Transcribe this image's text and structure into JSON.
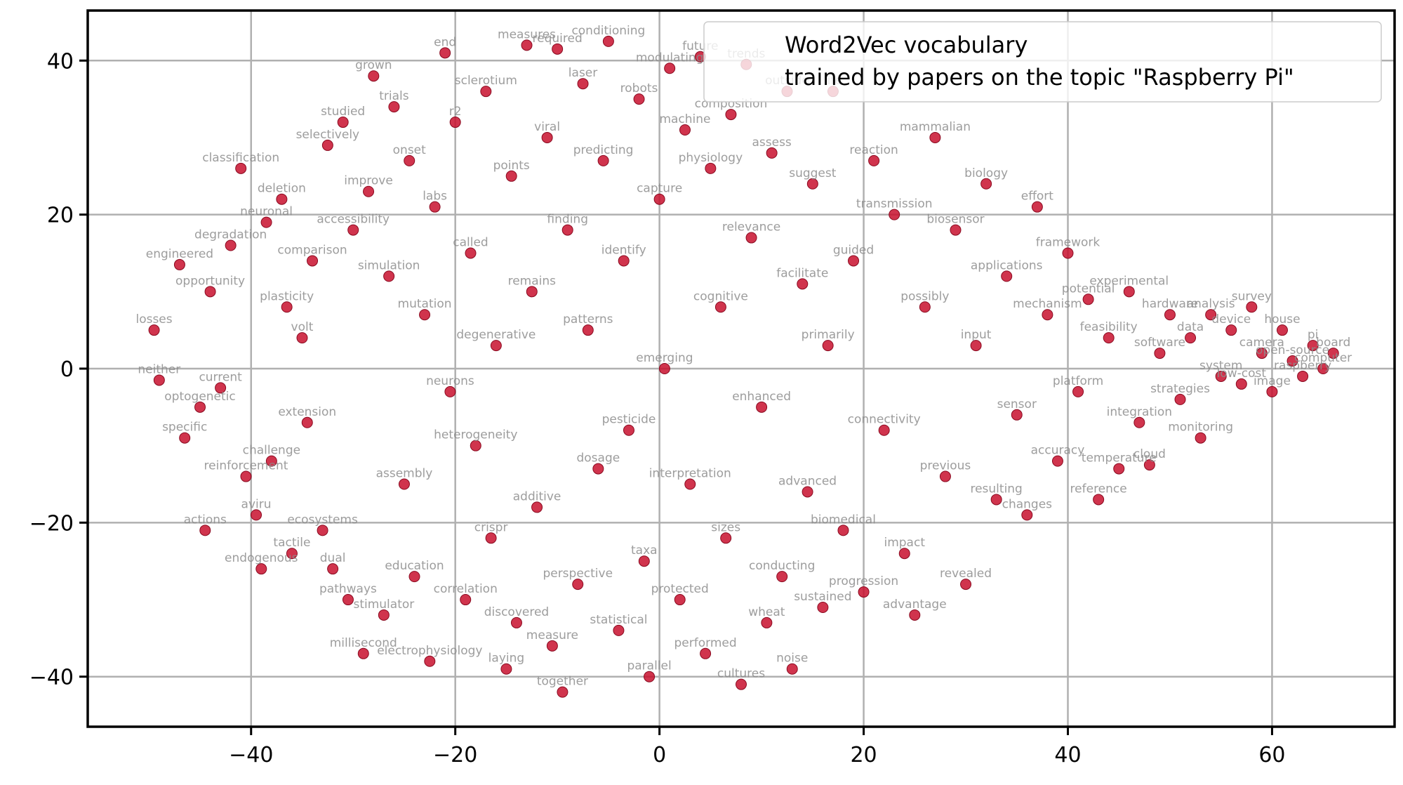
{
  "chart_data": {
    "type": "scatter",
    "title": "",
    "xlabel": "",
    "ylabel": "",
    "xlim": [
      -56,
      72
    ],
    "ylim": [
      -46.5,
      46.5
    ],
    "xticks": [
      -40,
      -20,
      0,
      20,
      40,
      60
    ],
    "yticks": [
      -40,
      -20,
      0,
      20,
      40
    ],
    "xtick_labels": [
      "−40",
      "−20",
      "0",
      "20",
      "40",
      "60"
    ],
    "ytick_labels": [
      "−40",
      "−20",
      "0",
      "20",
      "40"
    ],
    "grid": true,
    "legend": {
      "placement": "top-right",
      "lines": [
        "Word2Vec vocabulary",
        "trained by papers on the topic \"Raspberry Pi\""
      ]
    },
    "colors": {
      "marker": "#c8102e",
      "marker_edge": "#8a0a20",
      "label": "#8c8c8c",
      "grid": "#b0b0b0"
    },
    "series": [
      {
        "points": [
          {
            "x": -49.5,
            "y": 5,
            "label": "losses"
          },
          {
            "x": -49,
            "y": -1.5,
            "label": "neither"
          },
          {
            "x": -47,
            "y": 13.5,
            "label": "engineered"
          },
          {
            "x": -46.5,
            "y": -9,
            "label": "specific"
          },
          {
            "x": -45,
            "y": -5,
            "label": "optogenetic"
          },
          {
            "x": -44.5,
            "y": -21,
            "label": "actions"
          },
          {
            "x": -44,
            "y": 10,
            "label": "opportunity"
          },
          {
            "x": -43,
            "y": -2.5,
            "label": "current"
          },
          {
            "x": -42,
            "y": 16,
            "label": "degradation"
          },
          {
            "x": -41,
            "y": 26,
            "label": "classification"
          },
          {
            "x": -40.5,
            "y": -14,
            "label": "reinforcement"
          },
          {
            "x": -39.5,
            "y": -19,
            "label": "aviru"
          },
          {
            "x": -39,
            "y": -26,
            "label": "endogenous"
          },
          {
            "x": -38.5,
            "y": 19,
            "label": "neuronal"
          },
          {
            "x": -38,
            "y": -12,
            "label": "challenge"
          },
          {
            "x": -37,
            "y": 22,
            "label": "deletion"
          },
          {
            "x": -36.5,
            "y": 8,
            "label": "plasticity"
          },
          {
            "x": -36,
            "y": -24,
            "label": "tactile"
          },
          {
            "x": -35,
            "y": 4,
            "label": "volt"
          },
          {
            "x": -34.5,
            "y": -7,
            "label": "extension"
          },
          {
            "x": -34,
            "y": 14,
            "label": "comparison"
          },
          {
            "x": -33,
            "y": -21,
            "label": "ecosystems"
          },
          {
            "x": -32.5,
            "y": 29,
            "label": "selectively"
          },
          {
            "x": -32,
            "y": -26,
            "label": "dual"
          },
          {
            "x": -31,
            "y": 32,
            "label": "studied"
          },
          {
            "x": -30.5,
            "y": -30,
            "label": "pathways"
          },
          {
            "x": -30,
            "y": 18,
            "label": "accessibility"
          },
          {
            "x": -29,
            "y": -37,
            "label": "millisecond"
          },
          {
            "x": -28.5,
            "y": 23,
            "label": "improve"
          },
          {
            "x": -28,
            "y": 38,
            "label": "grown"
          },
          {
            "x": -27,
            "y": -32,
            "label": "stimulator"
          },
          {
            "x": -26.5,
            "y": 12,
            "label": "simulation"
          },
          {
            "x": -26,
            "y": 34,
            "label": "trials"
          },
          {
            "x": -25,
            "y": -15,
            "label": "assembly"
          },
          {
            "x": -24.5,
            "y": 27,
            "label": "onset"
          },
          {
            "x": -24,
            "y": -27,
            "label": "education"
          },
          {
            "x": -23,
            "y": 7,
            "label": "mutation"
          },
          {
            "x": -22.5,
            "y": -38,
            "label": "electrophysiology"
          },
          {
            "x": -22,
            "y": 21,
            "label": "labs"
          },
          {
            "x": -21,
            "y": 41,
            "label": "end"
          },
          {
            "x": -20.5,
            "y": -3,
            "label": "neurons"
          },
          {
            "x": -20,
            "y": 32,
            "label": "r2"
          },
          {
            "x": -19,
            "y": -30,
            "label": "correlation"
          },
          {
            "x": -18.5,
            "y": 15,
            "label": "called"
          },
          {
            "x": -18,
            "y": -10,
            "label": "heterogeneity"
          },
          {
            "x": -17,
            "y": 36,
            "label": "sclerotium"
          },
          {
            "x": -16.5,
            "y": -22,
            "label": "crispr"
          },
          {
            "x": -16,
            "y": 3,
            "label": "degenerative"
          },
          {
            "x": -15,
            "y": -39,
            "label": "laying"
          },
          {
            "x": -14.5,
            "y": 25,
            "label": "points"
          },
          {
            "x": -14,
            "y": -33,
            "label": "discovered"
          },
          {
            "x": -13,
            "y": 42,
            "label": "measures"
          },
          {
            "x": -12.5,
            "y": 10,
            "label": "remains"
          },
          {
            "x": -12,
            "y": -18,
            "label": "additive"
          },
          {
            "x": -11,
            "y": 30,
            "label": "viral"
          },
          {
            "x": -10.5,
            "y": -36,
            "label": "measure"
          },
          {
            "x": -10,
            "y": 41.5,
            "label": "required"
          },
          {
            "x": -9.5,
            "y": -42,
            "label": "together"
          },
          {
            "x": -9,
            "y": 18,
            "label": "finding"
          },
          {
            "x": -8,
            "y": -28,
            "label": "perspective"
          },
          {
            "x": -7.5,
            "y": 37,
            "label": "laser"
          },
          {
            "x": -7,
            "y": 5,
            "label": "patterns"
          },
          {
            "x": -6,
            "y": -13,
            "label": "dosage"
          },
          {
            "x": -5.5,
            "y": 27,
            "label": "predicting"
          },
          {
            "x": -5,
            "y": 42.5,
            "label": "conditioning"
          },
          {
            "x": -4,
            "y": -34,
            "label": "statistical"
          },
          {
            "x": -3.5,
            "y": 14,
            "label": "identify"
          },
          {
            "x": -3,
            "y": -8,
            "label": "pesticide"
          },
          {
            "x": -2,
            "y": 35,
            "label": "robots"
          },
          {
            "x": -1.5,
            "y": -25,
            "label": "taxa"
          },
          {
            "x": -1,
            "y": -40,
            "label": "parallel"
          },
          {
            "x": 0,
            "y": 22,
            "label": "capture"
          },
          {
            "x": 0.5,
            "y": 0,
            "label": "emerging"
          },
          {
            "x": 1,
            "y": 39,
            "label": "modulating"
          },
          {
            "x": 2,
            "y": -30,
            "label": "protected"
          },
          {
            "x": 2.5,
            "y": 31,
            "label": "machine"
          },
          {
            "x": 3,
            "y": -15,
            "label": "interpretation"
          },
          {
            "x": 4,
            "y": 40.5,
            "label": "future"
          },
          {
            "x": 4.5,
            "y": -37,
            "label": "performed"
          },
          {
            "x": 5,
            "y": 26,
            "label": "physiology"
          },
          {
            "x": 6,
            "y": 8,
            "label": "cognitive"
          },
          {
            "x": 6.5,
            "y": -22,
            "label": "sizes"
          },
          {
            "x": 7,
            "y": 33,
            "label": "composition"
          },
          {
            "x": 8,
            "y": -41,
            "label": "cultures"
          },
          {
            "x": 8.5,
            "y": 39.5,
            "label": "trends"
          },
          {
            "x": 9,
            "y": 17,
            "label": "relevance"
          },
          {
            "x": 10,
            "y": -5,
            "label": "enhanced"
          },
          {
            "x": 10.5,
            "y": -33,
            "label": "wheat"
          },
          {
            "x": 11,
            "y": 28,
            "label": "assess"
          },
          {
            "x": 12,
            "y": -27,
            "label": "conducting"
          },
          {
            "x": 12.5,
            "y": 36,
            "label": "outside"
          },
          {
            "x": 13,
            "y": -39,
            "label": "noise"
          },
          {
            "x": 14,
            "y": 11,
            "label": "facilitate"
          },
          {
            "x": 14.5,
            "y": -16,
            "label": "advanced"
          },
          {
            "x": 15,
            "y": 24,
            "label": "suggest"
          },
          {
            "x": 16,
            "y": -31,
            "label": "sustained"
          },
          {
            "x": 16.5,
            "y": 3,
            "label": "primarily"
          },
          {
            "x": 17,
            "y": 36,
            "label": "life"
          },
          {
            "x": 18,
            "y": -21,
            "label": "biomedical"
          },
          {
            "x": 19,
            "y": 14,
            "label": "guided"
          },
          {
            "x": 20,
            "y": -29,
            "label": "progression"
          },
          {
            "x": 21,
            "y": 27,
            "label": "reaction"
          },
          {
            "x": 22,
            "y": -8,
            "label": "connectivity"
          },
          {
            "x": 23,
            "y": 20,
            "label": "transmission"
          },
          {
            "x": 24,
            "y": -24,
            "label": "impact"
          },
          {
            "x": 25,
            "y": -32,
            "label": "advantage"
          },
          {
            "x": 26,
            "y": 8,
            "label": "possibly"
          },
          {
            "x": 27,
            "y": 30,
            "label": "mammalian"
          },
          {
            "x": 28,
            "y": -14,
            "label": "previous"
          },
          {
            "x": 29,
            "y": 18,
            "label": "biosensor"
          },
          {
            "x": 30,
            "y": -28,
            "label": "revealed"
          },
          {
            "x": 31,
            "y": 3,
            "label": "input"
          },
          {
            "x": 32,
            "y": 24,
            "label": "biology"
          },
          {
            "x": 33,
            "y": -17,
            "label": "resulting"
          },
          {
            "x": 34,
            "y": 12,
            "label": "applications"
          },
          {
            "x": 35,
            "y": -6,
            "label": "sensor"
          },
          {
            "x": 36,
            "y": -19,
            "label": "changes"
          },
          {
            "x": 37,
            "y": 21,
            "label": "effort"
          },
          {
            "x": 38,
            "y": 7,
            "label": "mechanism"
          },
          {
            "x": 39,
            "y": -12,
            "label": "accuracy"
          },
          {
            "x": 40,
            "y": 15,
            "label": "framework"
          },
          {
            "x": 41,
            "y": -3,
            "label": "platform"
          },
          {
            "x": 42,
            "y": 9,
            "label": "potential"
          },
          {
            "x": 43,
            "y": -17,
            "label": "reference"
          },
          {
            "x": 44,
            "y": 4,
            "label": "feasibility"
          },
          {
            "x": 45,
            "y": -13,
            "label": "temperature"
          },
          {
            "x": 46,
            "y": 10,
            "label": "experimental"
          },
          {
            "x": 47,
            "y": -7,
            "label": "integration"
          },
          {
            "x": 48,
            "y": -12.5,
            "label": "cloud"
          },
          {
            "x": 49,
            "y": 2,
            "label": "software"
          },
          {
            "x": 50,
            "y": 7,
            "label": "hardware"
          },
          {
            "x": 51,
            "y": -4,
            "label": "strategies"
          },
          {
            "x": 52,
            "y": 4,
            "label": "data"
          },
          {
            "x": 53,
            "y": -9,
            "label": "monitoring"
          },
          {
            "x": 54,
            "y": 7,
            "label": "analysis"
          },
          {
            "x": 55,
            "y": -1,
            "label": "system"
          },
          {
            "x": 56,
            "y": 5,
            "label": "device"
          },
          {
            "x": 57,
            "y": -2,
            "label": "low-cost"
          },
          {
            "x": 58,
            "y": 8,
            "label": "survey"
          },
          {
            "x": 59,
            "y": 2,
            "label": "camera"
          },
          {
            "x": 60,
            "y": -3,
            "label": "image"
          },
          {
            "x": 61,
            "y": 5,
            "label": "house"
          },
          {
            "x": 62,
            "y": 1,
            "label": "open-source"
          },
          {
            "x": 63,
            "y": -1,
            "label": "raspberry"
          },
          {
            "x": 64,
            "y": 3,
            "label": "pi"
          },
          {
            "x": 65,
            "y": 0,
            "label": "computer"
          },
          {
            "x": 66,
            "y": 2,
            "label": "board"
          }
        ]
      }
    ]
  }
}
